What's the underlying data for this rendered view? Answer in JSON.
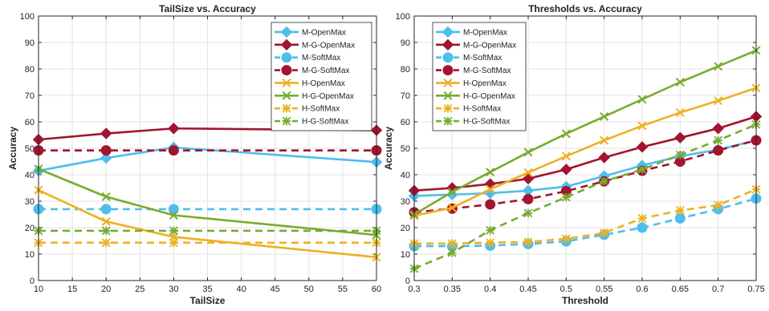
{
  "colors": {
    "blue": "#4DBEEE",
    "darkred": "#A2142F",
    "orange": "#EDB120",
    "green": "#77AC30"
  },
  "chart_data": [
    {
      "type": "line",
      "title": "TailSize vs. Accuracy",
      "xlabel": "TailSize",
      "ylabel": "Accuracy",
      "xlim": [
        10,
        60
      ],
      "ylim": [
        0,
        100
      ],
      "xticks": [
        10,
        15,
        20,
        25,
        30,
        35,
        40,
        45,
        50,
        55,
        60
      ],
      "xtick_labels": [
        "10",
        "15",
        "20",
        "25",
        "30",
        "35",
        "40",
        "45",
        "50",
        "55",
        "60"
      ],
      "yticks": [
        0,
        10,
        20,
        30,
        40,
        50,
        60,
        70,
        80,
        90,
        100
      ],
      "ytick_labels": [
        "0",
        "10",
        "20",
        "30",
        "40",
        "50",
        "60",
        "70",
        "80",
        "90",
        "100"
      ],
      "grid": true,
      "legend_position": "top-right",
      "x": [
        10,
        20,
        30,
        60
      ],
      "series": [
        {
          "name": "M-OpenMax",
          "values": [
            41.5,
            46.3,
            50.3,
            44.8
          ],
          "color": "blue",
          "style": "solid",
          "marker": "diamond"
        },
        {
          "name": "M-G-OpenMax",
          "values": [
            53.3,
            55.6,
            57.5,
            56.8
          ],
          "color": "darkred",
          "style": "solid",
          "marker": "diamond"
        },
        {
          "name": "M-SoftMax",
          "values": [
            27.0,
            27.0,
            27.0,
            27.0
          ],
          "color": "blue",
          "style": "dashed",
          "marker": "circle"
        },
        {
          "name": "M-G-SoftMax",
          "values": [
            49.2,
            49.2,
            49.2,
            49.2
          ],
          "color": "darkred",
          "style": "dashed",
          "marker": "circle"
        },
        {
          "name": "H-OpenMax",
          "values": [
            34.2,
            22.3,
            16.5,
            8.8
          ],
          "color": "orange",
          "style": "solid",
          "marker": "x"
        },
        {
          "name": "H-G-OpenMax",
          "values": [
            42.2,
            31.7,
            24.7,
            17.2
          ],
          "color": "green",
          "style": "solid",
          "marker": "x"
        },
        {
          "name": "H-SoftMax",
          "values": [
            14.3,
            14.3,
            14.3,
            14.3
          ],
          "color": "orange",
          "style": "dashed",
          "marker": "star"
        },
        {
          "name": "H-G-SoftMax",
          "values": [
            18.8,
            18.8,
            18.8,
            18.8
          ],
          "color": "green",
          "style": "dashed",
          "marker": "star"
        }
      ]
    },
    {
      "type": "line",
      "title": "Thresholds vs. Accuracy",
      "xlabel": "Threshold",
      "ylabel": "Accuracy",
      "xlim": [
        0.3,
        0.75
      ],
      "ylim": [
        0,
        100
      ],
      "xticks": [
        0.3,
        0.35,
        0.4,
        0.45,
        0.5,
        0.55,
        0.6,
        0.65,
        0.7,
        0.75
      ],
      "xtick_labels": [
        "0.3",
        "0.35",
        "0.4",
        "0.45",
        "0.5",
        "0.55",
        "0.6",
        "0.65",
        "0.7",
        "0.75"
      ],
      "yticks": [
        0,
        10,
        20,
        30,
        40,
        50,
        60,
        70,
        80,
        90,
        100
      ],
      "ytick_labels": [
        "0",
        "10",
        "20",
        "30",
        "40",
        "50",
        "60",
        "70",
        "80",
        "90",
        "100"
      ],
      "grid": true,
      "legend_position": "top-left",
      "x": [
        0.3,
        0.35,
        0.4,
        0.45,
        0.5,
        0.55,
        0.6,
        0.65,
        0.7,
        0.75
      ],
      "series": [
        {
          "name": "M-OpenMax",
          "values": [
            32.0,
            32.5,
            33.0,
            34.0,
            35.5,
            39.5,
            43.5,
            47.0,
            49.5,
            53.0
          ],
          "color": "blue",
          "style": "solid",
          "marker": "diamond"
        },
        {
          "name": "M-G-OpenMax",
          "values": [
            34.0,
            35.0,
            36.5,
            38.5,
            42.0,
            46.5,
            50.5,
            54.0,
            57.5,
            62.0
          ],
          "color": "darkred",
          "style": "solid",
          "marker": "diamond"
        },
        {
          "name": "M-SoftMax",
          "values": [
            13.0,
            13.0,
            13.2,
            13.8,
            14.8,
            17.3,
            20.0,
            23.5,
            27.0,
            31.0
          ],
          "color": "blue",
          "style": "dashed",
          "marker": "circle"
        },
        {
          "name": "M-G-SoftMax",
          "values": [
            25.8,
            27.2,
            28.8,
            30.8,
            33.8,
            37.5,
            41.5,
            45.0,
            49.2,
            53.0
          ],
          "color": "darkred",
          "style": "dashed",
          "marker": "circle"
        },
        {
          "name": "H-OpenMax",
          "values": [
            24.5,
            27.5,
            34.5,
            40.8,
            47.0,
            53.0,
            58.5,
            63.5,
            68.0,
            72.8
          ],
          "color": "orange",
          "style": "solid",
          "marker": "x"
        },
        {
          "name": "H-G-OpenMax",
          "values": [
            25.0,
            33.5,
            41.0,
            48.5,
            55.5,
            62.0,
            68.5,
            75.0,
            81.0,
            87.0
          ],
          "color": "green",
          "style": "solid",
          "marker": "x"
        },
        {
          "name": "H-SoftMax",
          "values": [
            14.0,
            14.0,
            14.3,
            14.6,
            15.8,
            18.0,
            23.5,
            26.5,
            28.5,
            34.5
          ],
          "color": "orange",
          "style": "dashed",
          "marker": "star"
        },
        {
          "name": "H-G-SoftMax",
          "values": [
            4.5,
            10.5,
            19.0,
            25.5,
            31.5,
            37.5,
            42.0,
            47.5,
            53.0,
            59.0
          ],
          "color": "green",
          "style": "dashed",
          "marker": "star"
        }
      ]
    }
  ]
}
